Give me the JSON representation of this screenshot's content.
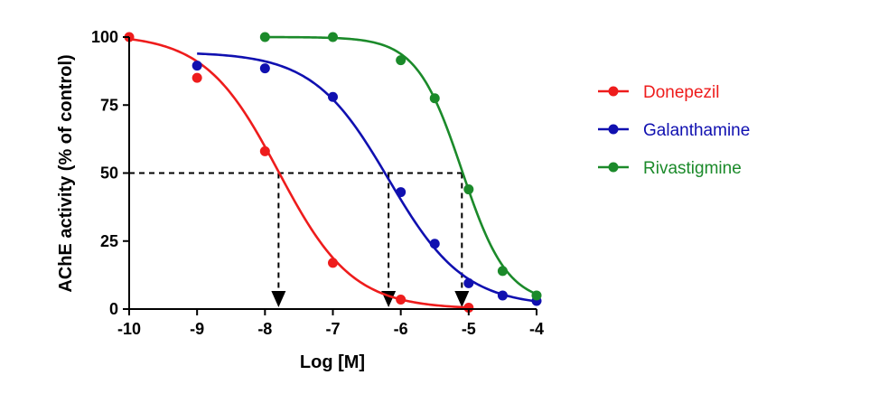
{
  "chart_data": {
    "type": "scatter",
    "title": "",
    "xlabel": "Log [M]",
    "ylabel": "AChE activity (% of control)",
    "xlim": [
      -10,
      -4
    ],
    "ylim": [
      0,
      100
    ],
    "xticks": [
      -10,
      -9,
      -8,
      -7,
      -6,
      -5,
      -4
    ],
    "xtick_labels": [
      "-10",
      "-9",
      "-8",
      "-7",
      "-6",
      "-5",
      "-4"
    ],
    "yticks": [
      0,
      25,
      50,
      75,
      100
    ],
    "ytick_labels": [
      "0",
      "25",
      "50",
      "75",
      "100"
    ],
    "grid": false,
    "legend_position": "right",
    "series": [
      {
        "name": "Donepezil",
        "color": "#ee1c1c",
        "x": [
          -10,
          -9,
          -8,
          -7,
          -6,
          -5
        ],
        "y": [
          100,
          85,
          58,
          17,
          3.5,
          0.5
        ],
        "fit": {
          "top": 101,
          "bottom": 0,
          "log_ic50": -7.8,
          "hill": -0.8
        }
      },
      {
        "name": "Galanthamine",
        "color": "#1010b0",
        "x": [
          -9,
          -8,
          -7,
          -6,
          -5.5,
          -5,
          -4.5,
          -4
        ],
        "y": [
          89.5,
          88.5,
          78,
          43,
          24,
          9.5,
          5,
          3
        ],
        "fit": {
          "top": 94.5,
          "bottom": 1,
          "log_ic50": -6.18,
          "hill": -0.78
        }
      },
      {
        "name": "Rivastigmine",
        "color": "#1b8a2a",
        "x": [
          -8,
          -7,
          -6,
          -5.5,
          -5,
          -4.5,
          -4
        ],
        "y": [
          100,
          100,
          91.5,
          77.5,
          44,
          14,
          5
        ],
        "fit": {
          "top": 100,
          "bottom": 2,
          "log_ic50": -5.1,
          "hill": -1.3
        }
      }
    ],
    "reference_line": {
      "y": 50,
      "arrows_at_x": [
        -7.8,
        -6.18,
        -5.1
      ]
    }
  }
}
